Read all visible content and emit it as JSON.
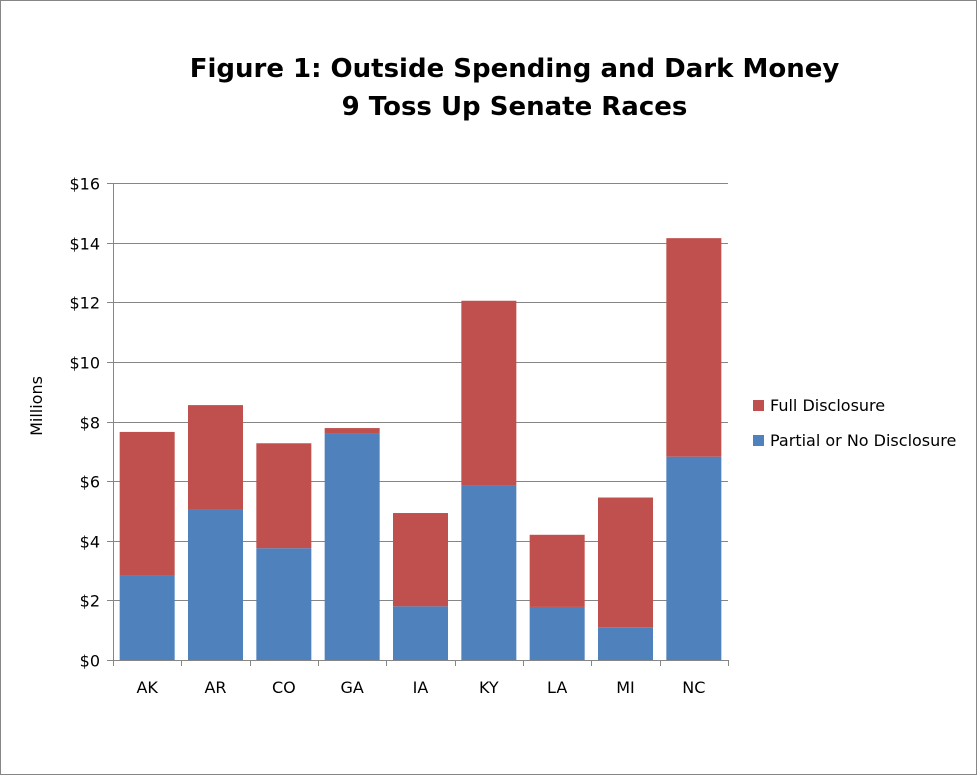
{
  "chart_data": {
    "type": "bar",
    "stacked": true,
    "title": "Figure 1: Outside Spending and Dark Money",
    "subtitle": "9 Toss Up Senate Races",
    "ylabel": "Millions",
    "xlabel": "",
    "ylim": [
      0,
      16
    ],
    "yticks": [
      "$0",
      "$2",
      "$4",
      "$6",
      "$8",
      "$10",
      "$12",
      "$14",
      "$16"
    ],
    "ytick_values": [
      0,
      2,
      4,
      6,
      8,
      10,
      12,
      14,
      16
    ],
    "grid": true,
    "legend_position": "right",
    "categories": [
      "AK",
      "AR",
      "CO",
      "GA",
      "IA",
      "KY",
      "LA",
      "MI",
      "NC"
    ],
    "series": [
      {
        "name": "Partial or No Disclosure",
        "color": "#4F81BD",
        "values": [
          2.85,
          5.05,
          3.75,
          7.6,
          1.8,
          5.85,
          1.78,
          1.1,
          6.82
        ]
      },
      {
        "name": "Full Disclosure",
        "color": "#C0504D",
        "values": [
          4.8,
          3.5,
          3.52,
          0.18,
          3.13,
          6.2,
          2.42,
          4.35,
          7.33
        ]
      }
    ]
  }
}
